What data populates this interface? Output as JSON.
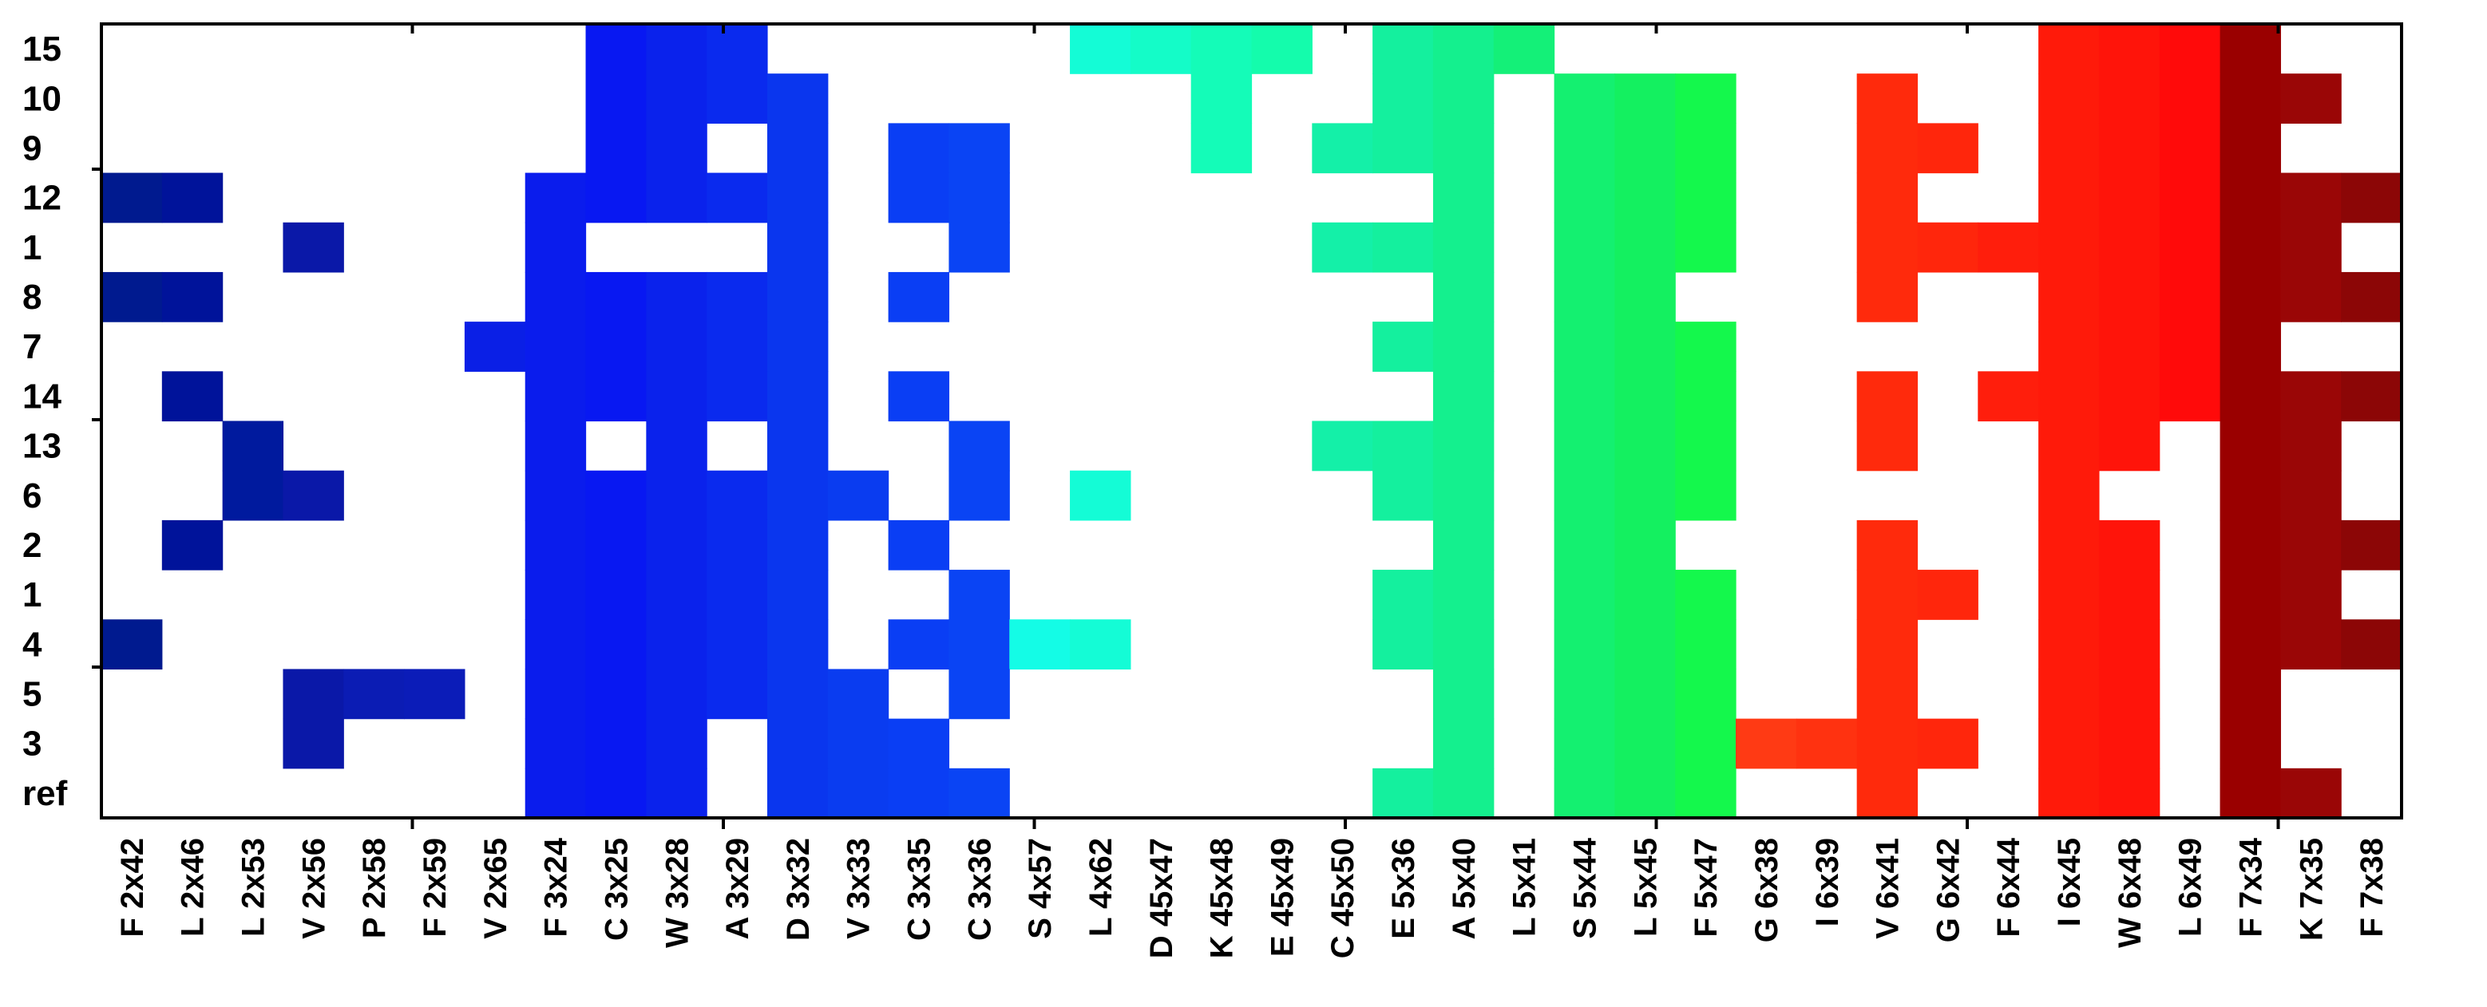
{
  "chart_data": {
    "type": "heatmap",
    "title": "",
    "xlabel": "",
    "ylabel": "",
    "grid": false,
    "legend": "none",
    "rows": [
      "15",
      "10",
      "9",
      "12",
      "1",
      "8",
      "7",
      "14",
      "13",
      "6",
      "2",
      "1",
      "4",
      "5",
      "3",
      "ref"
    ],
    "columns": [
      "F 2x42",
      "L 2x46",
      "L 2x53",
      "V 2x56",
      "P 2x58",
      "F 2x59",
      "V 2x65",
      "F 3x24",
      "C 3x25",
      "W 3x28",
      "A 3x29",
      "D 3x32",
      "V 3x33",
      "C 3x35",
      "C 3x36",
      "S 4x57",
      "L 4x62",
      "D 45x47",
      "K 45x48",
      "E 45x49",
      "C 45x50",
      "E 5x36",
      "A 5x40",
      "L 5x41",
      "S 5x44",
      "L 5x45",
      "F 5x47",
      "G 6x38",
      "I 6x39",
      "V 6x41",
      "G 6x42",
      "F 6x44",
      "I 6x45",
      "W 6x48",
      "L 6x49",
      "F 7x34",
      "K 7x35",
      "F 7x38"
    ],
    "column_colors": [
      "#001a8f",
      "#00139a",
      "#001a9e",
      "#0a18a8",
      "#0b1cb4",
      "#0b1cb8",
      "#0a1fe6",
      "#0a1ced",
      "#0818f2",
      "#0a22ec",
      "#0a2aee",
      "#0a36ee",
      "#0a3cf0",
      "#0a3ef4",
      "#0a44f4",
      "#14fce6",
      "#14fcd6",
      "#14fcc8",
      "#14fcb8",
      "#14fcac",
      "#14f0a8",
      "#14f09e",
      "#14f08e",
      "#14f078",
      "#14f070",
      "#14f060",
      "#14f84c",
      "#ff3a14",
      "#ff3210",
      "#ff2a0c",
      "#ff260c",
      "#ff1e0c",
      "#ff1a0a",
      "#ff140a",
      "#ff0a0a",
      "#9a0000",
      "#9a0606",
      "#8c0606"
    ],
    "values": [
      [
        0,
        0,
        0,
        0,
        0,
        0,
        0,
        0,
        1,
        1,
        1,
        0,
        0,
        0,
        0,
        0,
        1,
        1,
        1,
        1,
        0,
        1,
        1,
        1,
        0,
        0,
        0,
        0,
        0,
        0,
        0,
        0,
        1,
        1,
        1,
        1,
        0,
        0
      ],
      [
        0,
        0,
        0,
        0,
        0,
        0,
        0,
        0,
        1,
        1,
        1,
        1,
        0,
        0,
        0,
        0,
        0,
        0,
        1,
        0,
        0,
        1,
        1,
        0,
        1,
        1,
        1,
        0,
        0,
        1,
        0,
        0,
        1,
        1,
        1,
        1,
        1,
        0
      ],
      [
        0,
        0,
        0,
        0,
        0,
        0,
        0,
        0,
        1,
        1,
        0,
        1,
        0,
        1,
        1,
        0,
        0,
        0,
        1,
        0,
        1,
        1,
        1,
        0,
        1,
        1,
        1,
        0,
        0,
        1,
        1,
        0,
        1,
        1,
        1,
        1,
        0,
        0
      ],
      [
        1,
        1,
        0,
        0,
        0,
        0,
        0,
        1,
        1,
        1,
        1,
        1,
        0,
        1,
        1,
        0,
        0,
        0,
        0,
        0,
        0,
        0,
        1,
        0,
        1,
        1,
        1,
        0,
        0,
        1,
        0,
        0,
        1,
        1,
        1,
        1,
        1,
        1
      ],
      [
        0,
        0,
        0,
        1,
        0,
        0,
        0,
        1,
        0,
        0,
        0,
        1,
        0,
        0,
        1,
        0,
        0,
        0,
        0,
        0,
        1,
        1,
        1,
        0,
        1,
        1,
        1,
        0,
        0,
        1,
        1,
        1,
        1,
        1,
        1,
        1,
        1,
        0
      ],
      [
        1,
        1,
        0,
        0,
        0,
        0,
        0,
        1,
        1,
        1,
        1,
        1,
        0,
        1,
        0,
        0,
        0,
        0,
        0,
        0,
        0,
        0,
        1,
        0,
        1,
        1,
        0,
        0,
        0,
        1,
        0,
        0,
        1,
        1,
        1,
        1,
        1,
        1
      ],
      [
        0,
        0,
        0,
        0,
        0,
        0,
        1,
        1,
        1,
        1,
        1,
        1,
        0,
        0,
        0,
        0,
        0,
        0,
        0,
        0,
        0,
        1,
        1,
        0,
        1,
        1,
        1,
        0,
        0,
        0,
        0,
        0,
        1,
        1,
        1,
        1,
        0,
        0
      ],
      [
        0,
        1,
        0,
        0,
        0,
        0,
        0,
        1,
        1,
        1,
        1,
        1,
        0,
        1,
        0,
        0,
        0,
        0,
        0,
        0,
        0,
        0,
        1,
        0,
        1,
        1,
        1,
        0,
        0,
        1,
        0,
        1,
        1,
        1,
        1,
        1,
        1,
        1
      ],
      [
        0,
        0,
        1,
        0,
        0,
        0,
        0,
        1,
        0,
        1,
        0,
        1,
        0,
        0,
        1,
        0,
        0,
        0,
        0,
        0,
        1,
        1,
        1,
        0,
        1,
        1,
        1,
        0,
        0,
        1,
        0,
        0,
        1,
        1,
        0,
        1,
        1,
        0
      ],
      [
        0,
        0,
        1,
        1,
        0,
        0,
        0,
        1,
        1,
        1,
        1,
        1,
        1,
        0,
        1,
        0,
        1,
        0,
        0,
        0,
        0,
        1,
        1,
        0,
        1,
        1,
        1,
        0,
        0,
        0,
        0,
        0,
        1,
        0,
        0,
        1,
        1,
        0
      ],
      [
        0,
        1,
        0,
        0,
        0,
        0,
        0,
        1,
        1,
        1,
        1,
        1,
        0,
        1,
        0,
        0,
        0,
        0,
        0,
        0,
        0,
        0,
        1,
        0,
        1,
        1,
        0,
        0,
        0,
        1,
        0,
        0,
        1,
        1,
        0,
        1,
        1,
        1
      ],
      [
        0,
        0,
        0,
        0,
        0,
        0,
        0,
        1,
        1,
        1,
        1,
        1,
        0,
        0,
        1,
        0,
        0,
        0,
        0,
        0,
        0,
        1,
        1,
        0,
        1,
        1,
        1,
        0,
        0,
        1,
        1,
        0,
        1,
        1,
        0,
        1,
        1,
        0
      ],
      [
        1,
        0,
        0,
        0,
        0,
        0,
        0,
        1,
        1,
        1,
        1,
        1,
        0,
        1,
        1,
        1,
        1,
        0,
        0,
        0,
        0,
        1,
        1,
        0,
        1,
        1,
        1,
        0,
        0,
        1,
        0,
        0,
        1,
        1,
        0,
        1,
        1,
        1
      ],
      [
        0,
        0,
        0,
        1,
        1,
        1,
        0,
        1,
        1,
        1,
        1,
        1,
        1,
        0,
        1,
        0,
        0,
        0,
        0,
        0,
        0,
        0,
        1,
        0,
        1,
        1,
        1,
        0,
        0,
        1,
        0,
        0,
        1,
        1,
        0,
        1,
        0,
        0
      ],
      [
        0,
        0,
        0,
        1,
        0,
        0,
        0,
        1,
        1,
        1,
        0,
        1,
        1,
        1,
        0,
        0,
        0,
        0,
        0,
        0,
        0,
        0,
        1,
        0,
        1,
        1,
        1,
        1,
        1,
        1,
        1,
        0,
        1,
        1,
        0,
        1,
        0,
        0
      ],
      [
        0,
        0,
        0,
        0,
        0,
        0,
        0,
        1,
        1,
        1,
        0,
        1,
        1,
        1,
        1,
        0,
        0,
        0,
        0,
        0,
        0,
        1,
        1,
        0,
        1,
        1,
        1,
        0,
        0,
        1,
        0,
        0,
        1,
        1,
        0,
        1,
        1,
        0
      ]
    ]
  }
}
